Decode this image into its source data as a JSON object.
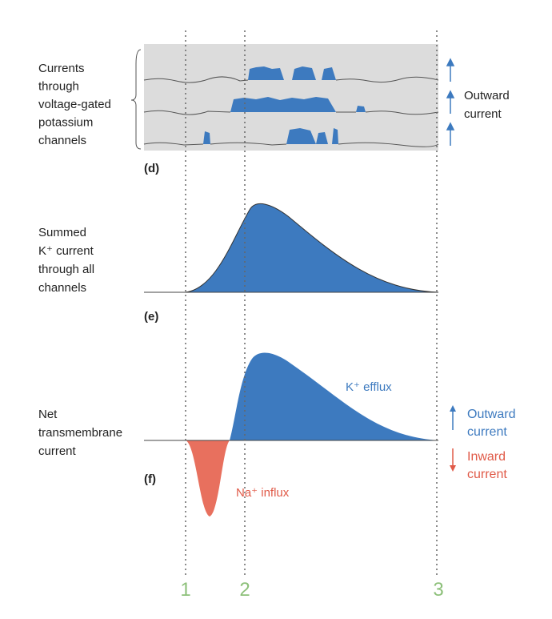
{
  "panel_d": {
    "label_lines": [
      "Currents",
      "through",
      "voltage-gated",
      "potassium",
      "channels"
    ],
    "tag": "(d)",
    "side_lines": [
      "Outward",
      "current"
    ]
  },
  "panel_e": {
    "label_lines": [
      "Summed",
      "K⁺ current",
      "through all",
      "channels"
    ],
    "tag": "(e)"
  },
  "panel_f": {
    "label_lines": [
      "Net",
      "transmembrane",
      "current"
    ],
    "tag": "(f)",
    "efflux": "K⁺ efflux",
    "influx": "Na⁺ influx",
    "outward_lines": [
      "Outward",
      "current"
    ],
    "inward_lines": [
      "Inward",
      "current"
    ]
  },
  "time_markers": [
    "1",
    "2",
    "3"
  ]
}
